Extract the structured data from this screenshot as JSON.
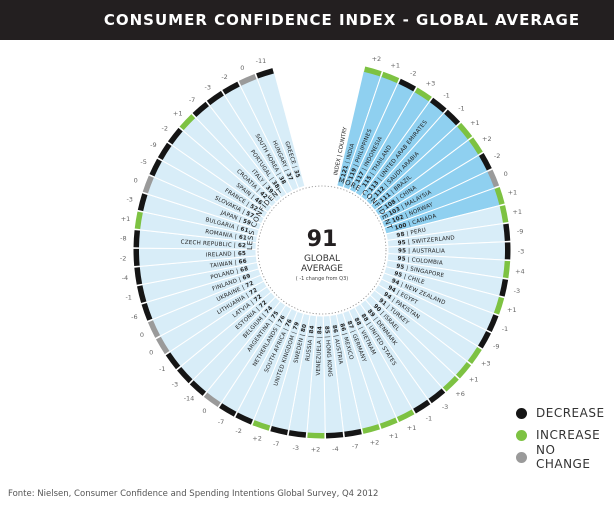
{
  "title": "CONSUMER CONFIDENCE INDEX - GLOBAL AVERAGE",
  "source": "Fonte: Nielsen, Consumer Confidence and Spending Intentions Global Survey, Q4 2012",
  "colors": {
    "decrease": "#151515",
    "increase": "#7dc242",
    "no_change": "#9a9a9a",
    "more_confident": "#8fd0f0",
    "less_confident": "#d8edf8",
    "header": "#231f20"
  },
  "legend": [
    {
      "key": "decrease",
      "label": "DECREASE"
    },
    {
      "key": "increase",
      "label": "INCREASE"
    },
    {
      "key": "no_change",
      "label": "NO CHANGE"
    }
  ],
  "chart_data": {
    "type": "radial-bar",
    "title": "CONSUMER CONFIDENCE INDEX - GLOBAL AVERAGE",
    "center": {
      "value": "91",
      "label1": "GLOBAL",
      "label2": "AVERAGE",
      "note": "( -1 change from Q3)"
    },
    "header_label": "INDEX | COUNTRY",
    "more_label": "MORE CONFIDENT",
    "less_label": "LESS CONFIDENT",
    "threshold": 100,
    "countries": [
      {
        "name": "INDIA",
        "index": 121,
        "change": 2
      },
      {
        "name": "PHILIPPINES",
        "index": 119,
        "change": 1
      },
      {
        "name": "INDONESIA",
        "index": 117,
        "change": -2
      },
      {
        "name": "THAILAND",
        "index": 115,
        "change": 3
      },
      {
        "name": "UNITED ARAB EMIRATES",
        "index": 113,
        "change": -1
      },
      {
        "name": "SAUDI ARABIA",
        "index": 112,
        "change": -1
      },
      {
        "name": "BRAZIL",
        "index": 111,
        "change": 1
      },
      {
        "name": "CHINA",
        "index": 108,
        "change": 2
      },
      {
        "name": "MALAYSIA",
        "index": 103,
        "change": -2
      },
      {
        "name": "NORWAY",
        "index": 102,
        "change": 0
      },
      {
        "name": "CANADA",
        "index": 100,
        "change": 1
      },
      {
        "name": "PERU",
        "index": 98,
        "change": 1
      },
      {
        "name": "SWITZERLAND",
        "index": 95,
        "change": -9
      },
      {
        "name": "AUSTRALIA",
        "index": 95,
        "change": -3
      },
      {
        "name": "COLOMBIA",
        "index": 95,
        "change": 4
      },
      {
        "name": "SINGAPORE",
        "index": 95,
        "change": -3
      },
      {
        "name": "CHILE",
        "index": 95,
        "change": 1
      },
      {
        "name": "NEW ZEALAND",
        "index": 94,
        "change": -1
      },
      {
        "name": "EGYPT",
        "index": 94,
        "change": -9
      },
      {
        "name": "PAKISTAN",
        "index": 94,
        "change": 3
      },
      {
        "name": "TURKEY",
        "index": 91,
        "change": 1
      },
      {
        "name": "ISRAEL",
        "index": 90,
        "change": 6
      },
      {
        "name": "DENMARK",
        "index": 89,
        "change": -3
      },
      {
        "name": "UNITED STATES",
        "index": 88,
        "change": -1
      },
      {
        "name": "VIETNAM",
        "index": 88,
        "change": 1
      },
      {
        "name": "GERMANY",
        "index": 87,
        "change": 1
      },
      {
        "name": "MEXICO",
        "index": 86,
        "change": 2
      },
      {
        "name": "AUSTRIA",
        "index": 86,
        "change": -7
      },
      {
        "name": "HONG KONG",
        "index": 85,
        "change": -4
      },
      {
        "name": "VENEZUELA",
        "index": 84,
        "change": 2
      },
      {
        "name": "RUSSIA",
        "index": 84,
        "change": -3
      },
      {
        "name": "SWEDEN",
        "index": 80,
        "change": -7
      },
      {
        "name": "UNITED KINGDOM",
        "index": 79,
        "change": 2
      },
      {
        "name": "SOUTH AFRICA",
        "index": 76,
        "change": -2
      },
      {
        "name": "NETHERLANDS",
        "index": 76,
        "change": -7
      },
      {
        "name": "ARGENTINA",
        "index": 75,
        "change": 0
      },
      {
        "name": "BELGIUM",
        "index": 74,
        "change": -14
      },
      {
        "name": "ESTONIA",
        "index": 72,
        "change": -3
      },
      {
        "name": "LATVIA",
        "index": 72,
        "change": -1
      },
      {
        "name": "LITHUANIA",
        "index": 72,
        "change": 0
      },
      {
        "name": "UKRAINE",
        "index": 72,
        "change": 0
      },
      {
        "name": "FINLAND",
        "index": 69,
        "change": -6
      },
      {
        "name": "POLAND",
        "index": 68,
        "change": -1
      },
      {
        "name": "TAIWAN",
        "index": 66,
        "change": -4
      },
      {
        "name": "IRELAND",
        "index": 65,
        "change": -2
      },
      {
        "name": "CZECH REPUBLIC",
        "index": 62,
        "change": -8
      },
      {
        "name": "ROMANIA",
        "index": 61,
        "change": 1
      },
      {
        "name": "BULGARIA",
        "index": 61,
        "change": -3
      },
      {
        "name": "JAPAN",
        "index": 59,
        "change": 0
      },
      {
        "name": "SLOVAKIA",
        "index": 57,
        "change": -5
      },
      {
        "name": "FRANCE",
        "index": 52,
        "change": -9
      },
      {
        "name": "SPAIN",
        "index": 46,
        "change": -2
      },
      {
        "name": "CROATIA",
        "index": 42,
        "change": 1
      },
      {
        "name": "ITALY",
        "index": 39,
        "change": -7
      },
      {
        "name": "PORTUGAL",
        "index": 38,
        "change": -3
      },
      {
        "name": "SOUTH KOREA",
        "index": 38,
        "change": -2
      },
      {
        "name": "HUNGARY",
        "index": 37,
        "change": 0
      },
      {
        "name": "GREECE",
        "index": 35,
        "change": -11
      }
    ]
  }
}
